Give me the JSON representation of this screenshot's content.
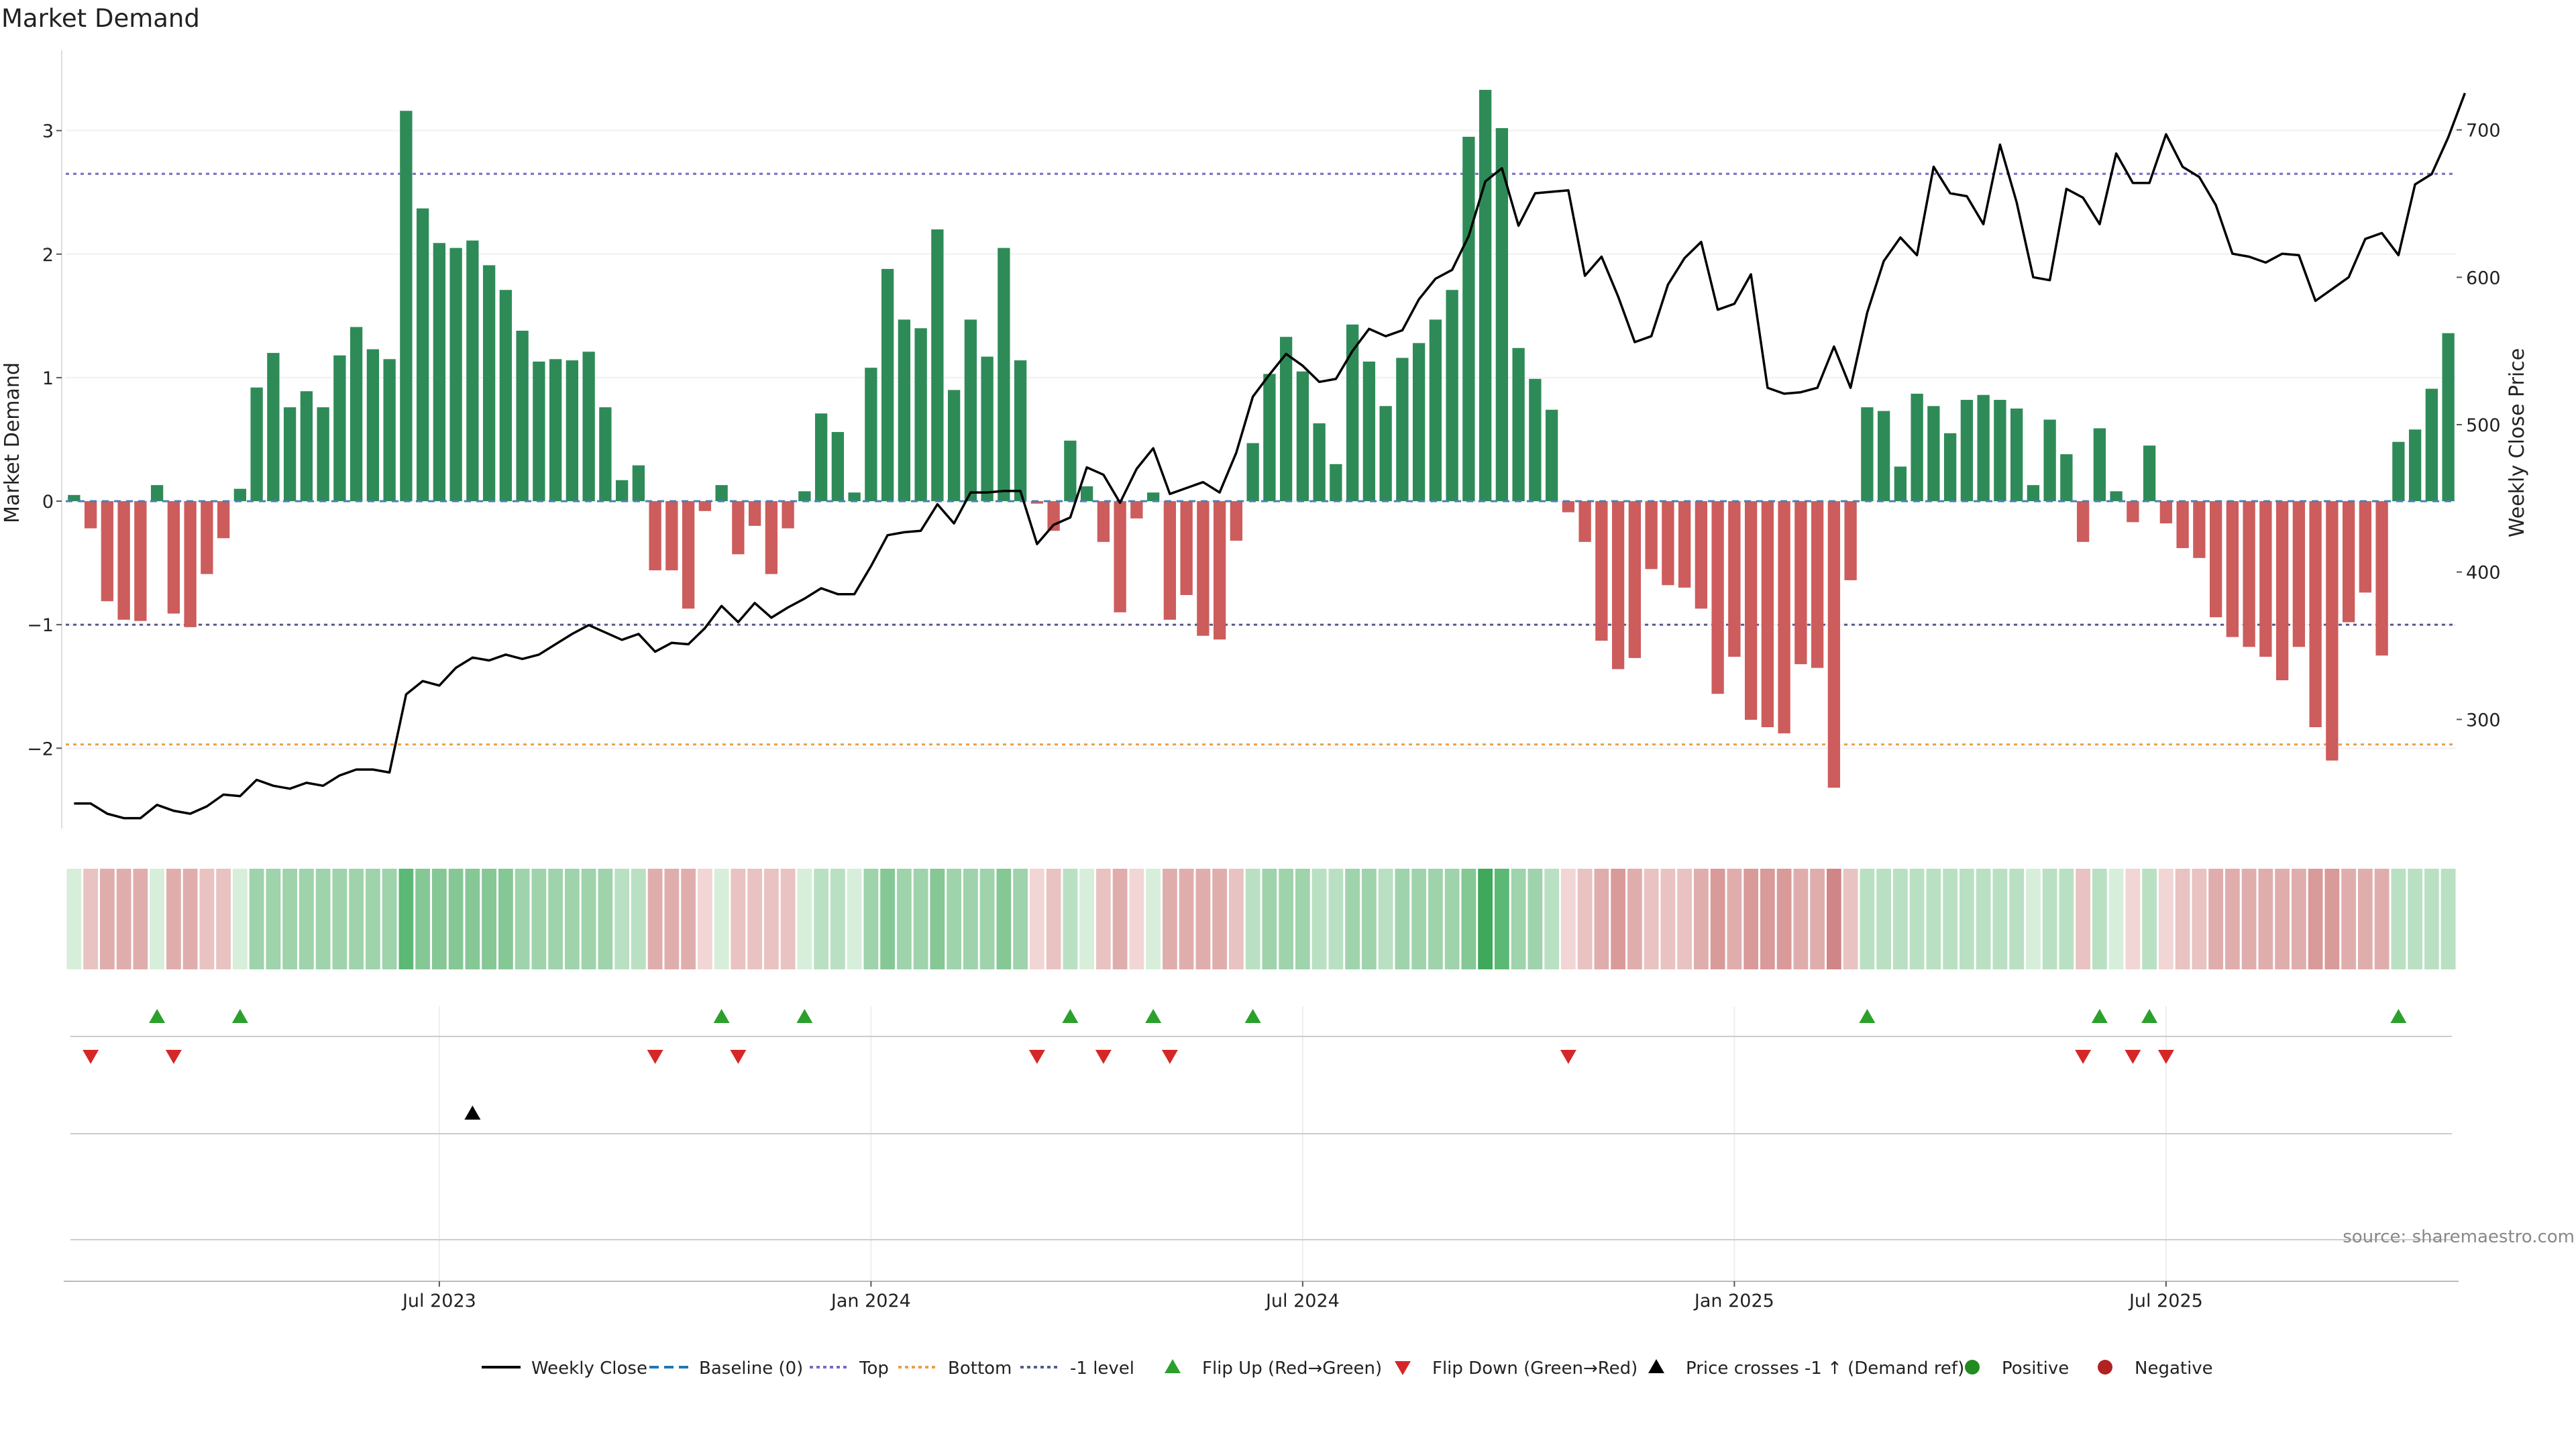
{
  "chart_data": {
    "type": "bar",
    "title": "Market Demand",
    "ylabel_left": "Market Demand",
    "ylabel_right": "Weekly Close Price",
    "source": "source: sharemaestro.com",
    "ylim": [
      -2.65,
      3.65
    ],
    "price_ylim": [
      226,
      754
    ],
    "left_ticks": [
      3,
      2,
      1,
      0,
      -1,
      -2
    ],
    "left_tick_labels": [
      "3",
      "2",
      "1",
      "0",
      "−1",
      "−2"
    ],
    "right_ticks": [
      700,
      600,
      500,
      400,
      300
    ],
    "right_tick_labels": [
      "700",
      "600",
      "500",
      "400",
      "300"
    ],
    "x_tick_indices": [
      22,
      48,
      74,
      100,
      126
    ],
    "x_tick_labels": [
      "Jul 2023",
      "Jan 2024",
      "Jul 2024",
      "Jan 2025",
      "Jul 2025"
    ],
    "levels": {
      "top": 2.65,
      "bottom": -1.97,
      "minus_one": -1.0
    },
    "demand": [
      0.05,
      -0.22,
      -0.81,
      -0.96,
      -0.97,
      0.13,
      -0.91,
      -1.02,
      -0.59,
      -0.3,
      0.1,
      0.92,
      1.2,
      0.76,
      0.89,
      0.76,
      1.18,
      1.41,
      1.23,
      1.15,
      3.16,
      2.37,
      2.09,
      2.05,
      2.11,
      1.91,
      1.71,
      1.38,
      1.13,
      1.15,
      1.14,
      1.21,
      0.76,
      0.17,
      0.29,
      -0.56,
      -0.56,
      -0.87,
      -0.08,
      0.13,
      -0.43,
      -0.2,
      -0.59,
      -0.22,
      0.08,
      0.71,
      0.56,
      0.07,
      1.08,
      1.88,
      1.47,
      1.4,
      2.2,
      0.9,
      1.47,
      1.17,
      2.05,
      1.14,
      -0.02,
      -0.24,
      0.49,
      0.12,
      -0.33,
      -0.9,
      -0.14,
      0.07,
      -0.96,
      -0.76,
      -1.09,
      -1.12,
      -0.32,
      0.47,
      1.03,
      1.33,
      1.05,
      0.63,
      0.3,
      1.43,
      1.13,
      0.77,
      1.16,
      1.28,
      1.47,
      1.71,
      2.95,
      3.33,
      3.02,
      1.24,
      0.99,
      0.74,
      -0.09,
      -0.33,
      -1.13,
      -1.36,
      -1.27,
      -0.55,
      -0.68,
      -0.7,
      -0.87,
      -1.56,
      -1.26,
      -1.77,
      -1.83,
      -1.88,
      -1.32,
      -1.35,
      -2.32,
      -0.64,
      0.76,
      0.73,
      0.28,
      0.87,
      0.77,
      0.55,
      0.82,
      0.86,
      0.82,
      0.75,
      0.13,
      0.66,
      0.38,
      -0.33,
      0.59,
      0.08,
      -0.17,
      0.45,
      -0.18,
      -0.38,
      -0.46,
      -0.94,
      -1.1,
      -1.18,
      -1.26,
      -1.45,
      -1.18,
      -1.83,
      -2.1,
      -0.98,
      -0.74,
      -1.25,
      0.48,
      0.58,
      0.91,
      1.36
    ],
    "weekly_close": [
      243,
      243,
      236,
      233,
      233,
      242,
      238,
      236,
      241,
      249,
      248,
      259,
      255,
      253,
      257,
      255,
      262,
      266,
      266,
      264,
      317,
      326,
      323,
      335,
      342,
      340,
      344,
      341,
      344,
      351,
      358,
      364,
      359,
      354,
      358,
      346,
      352,
      351,
      362,
      377,
      366,
      379,
      369,
      376,
      382,
      389,
      385,
      385,
      404,
      425,
      427,
      428,
      446,
      433,
      454,
      454,
      455,
      455,
      419,
      432,
      437,
      471,
      466,
      447,
      470,
      484,
      453,
      457,
      461,
      454,
      481,
      519,
      534,
      548,
      540,
      529,
      531,
      550,
      565,
      560,
      564,
      585,
      599,
      605,
      628,
      665,
      674,
      635,
      657,
      658,
      659,
      601,
      614,
      587,
      556,
      560,
      595,
      613,
      624,
      578,
      582,
      602,
      525,
      521,
      522,
      525,
      553,
      525,
      576,
      611,
      627,
      615,
      675,
      657,
      655,
      636,
      690,
      651,
      600,
      598,
      660,
      654,
      636,
      684,
      664,
      664,
      697,
      675,
      668,
      649,
      616,
      614,
      610,
      616,
      615,
      584,
      592,
      600,
      626,
      630,
      615,
      663,
      670,
      695,
      725
    ],
    "heat_tiers": [
      1,
      2,
      3,
      3,
      3,
      1,
      3,
      3,
      2,
      2,
      1,
      3,
      3,
      3,
      3,
      3,
      3,
      3,
      3,
      3,
      5,
      4,
      4,
      4,
      4,
      4,
      4,
      3,
      3,
      3,
      3,
      3,
      3,
      2,
      2,
      3,
      3,
      3,
      1,
      1,
      2,
      2,
      2,
      2,
      1,
      2,
      2,
      1,
      3,
      4,
      3,
      3,
      4,
      3,
      3,
      3,
      4,
      3,
      1,
      2,
      2,
      1,
      2,
      3,
      1,
      1,
      3,
      3,
      3,
      3,
      2,
      2,
      3,
      3,
      3,
      2,
      2,
      3,
      3,
      2,
      3,
      3,
      3,
      3,
      4,
      6,
      5,
      3,
      3,
      2,
      1,
      2,
      3,
      4,
      3,
      2,
      2,
      2,
      3,
      4,
      3,
      4,
      4,
      4,
      3,
      3,
      5,
      2,
      2,
      2,
      2,
      2,
      2,
      2,
      2,
      2,
      2,
      2,
      1,
      2,
      2,
      2,
      2,
      1,
      1,
      2,
      1,
      2,
      2,
      3,
      3,
      3,
      3,
      3,
      3,
      4,
      4,
      3,
      3,
      3,
      2,
      2,
      2,
      2
    ],
    "flip_up": [
      5,
      10,
      39,
      44,
      60,
      65,
      71,
      108,
      122,
      125,
      140
    ],
    "flip_down": [
      1,
      6,
      35,
      40,
      58,
      62,
      66,
      90,
      121,
      124,
      126
    ],
    "price_cross": [
      24
    ],
    "colors": {
      "positive": "#2e8b57",
      "negative": "#cd5c5c",
      "price_line": "#000000",
      "top_line": "#7b68c4",
      "bottom_line": "#e8a04a",
      "minus_one_line": "#555a8a",
      "flip_up": "#2ca02c",
      "flip_down": "#d62728",
      "marker_black": "#000000",
      "positive_dot": "#228b22",
      "negative_dot": "#b22222",
      "heat_green": [
        "#d7eedb",
        "#b9e0c2",
        "#9fd3ab",
        "#86c796",
        "#5cb875",
        "#3fa85b"
      ],
      "heat_red": [
        "#f2d5d5",
        "#e9c2c2",
        "#e0adad",
        "#d99a9a",
        "#d08686",
        "#c77373"
      ]
    },
    "legend": [
      {
        "label": "Weekly Close",
        "kind": "line",
        "color": "#000000"
      },
      {
        "label": "Baseline (0)",
        "kind": "dash",
        "color": "#1f77b4"
      },
      {
        "label": "Top",
        "kind": "dot",
        "color": "#7b68c4"
      },
      {
        "label": "Bottom",
        "kind": "dot",
        "color": "#e8a04a"
      },
      {
        "label": "-1 level",
        "kind": "dot",
        "color": "#555a8a"
      },
      {
        "label": "Flip Up (Red→Green)",
        "kind": "tri-up",
        "color": "#2ca02c"
      },
      {
        "label": "Flip Down (Green→Red)",
        "kind": "tri-down",
        "color": "#d62728"
      },
      {
        "label": "Price crosses -1 ↑ (Demand ref)",
        "kind": "tri-up",
        "color": "#000000"
      },
      {
        "label": "Positive",
        "kind": "circle",
        "color": "#228b22"
      },
      {
        "label": "Negative",
        "kind": "circle",
        "color": "#b22222"
      }
    ]
  }
}
